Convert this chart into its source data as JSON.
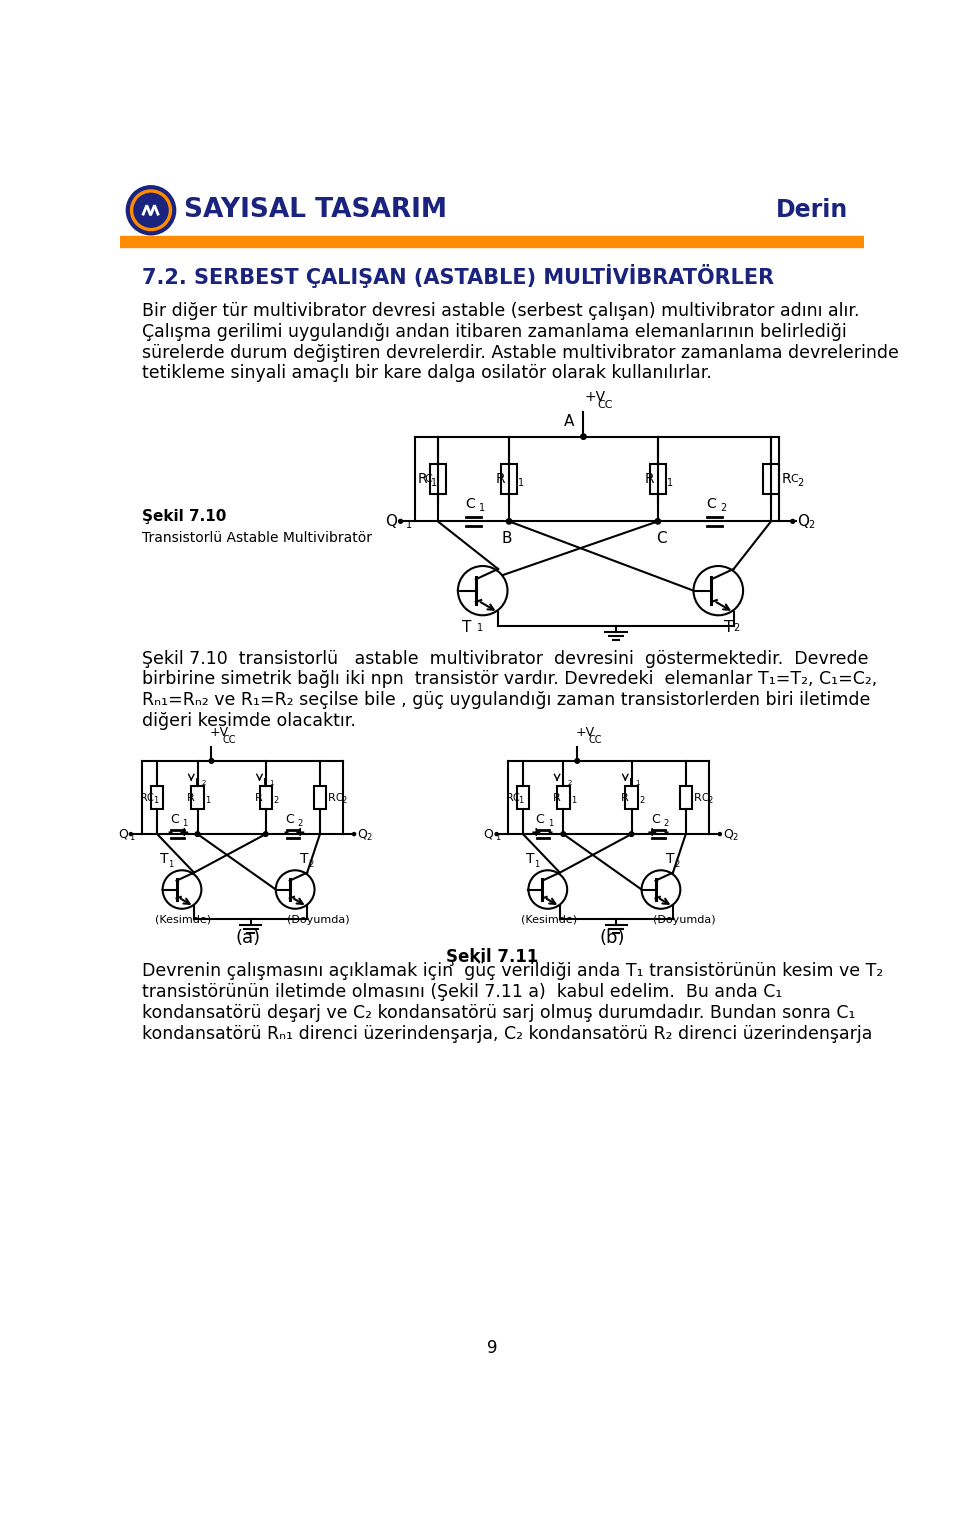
{
  "header_title": "SAYISAL TASARIM",
  "header_right": "Derin",
  "header_bar_color": "#FF8C00",
  "section_title": "7.2. SERBEST ÇALIŞAN (ASTABLE) MULTİVİBRATÖRLER",
  "body_lines_1": [
    "Bir diğer tür multivibrator devresi astable (serbest çalışan) multivibrator adını alır.",
    "Çalışma gerilimi uygulandığı andan itibaren zamanlama elemanlarının belirlediği",
    "sürelerde durum değiştiren devrelerdir. Astable multivibrator zamanlama devrelerinde",
    "tetikleme sinyali amaçlı bir kare dalga osilatör olarak kullanılırlar."
  ],
  "fig1_label1": "Şekil 7.10",
  "fig1_label2": "Transistorlü Astable Multivibratör",
  "body_lines_2": [
    "Şekil 7.10  transistorlü   astable  multivibrator  devresini  göstermektedir.  Devrede",
    "birbirine simetrik bağlı iki npn  transistör vardır. Devredeki  elemanlar T₁=T₂, C₁=C₂,",
    "Rₙ₁=Rₙ₂ ve R₁=R₂ seçilse bile , güç uygulandığı zaman transistorlerden biri iletimde",
    "diğeri kesimde olacaktır."
  ],
  "fig2_caption": "Şekil 7.11",
  "body_lines_3": [
    "Devrenin çalışmasını açıklamak için  güç verildiği anda T₁ transistörünün kesim ve T₂",
    "transistörünün iletimde olmasını (Şekil 7.11 a)  kabul edelim.  Bu anda C₁",
    "kondansatörü deşarj ve C₂ kondansatörü sarj olmuş durumdadır. Bundan sonra C₁",
    "kondansatörü Rₙ₁ direnci üzerindenşarja, C₂ kondansatörü R₂ direnci üzerindenşarja"
  ],
  "text_color": "#000000",
  "blue_color": "#1a237e",
  "orange_color": "#FF8C00",
  "bg_color": "#ffffff",
  "page_number": "9"
}
